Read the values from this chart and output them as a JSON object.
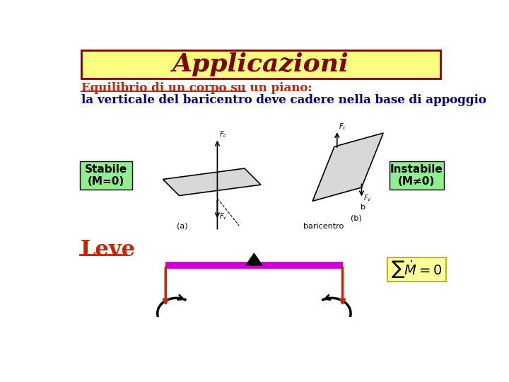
{
  "title": "Applicazioni",
  "title_bg": "#ffff80",
  "title_color": "#800000",
  "title_border": "#800000",
  "subtitle1": "Equilibrio di un corpo su un piano:",
  "subtitle2": "la verticale del baricentro deve cadere nella base di appoggio",
  "subtitle1_color": "#cc2200",
  "subtitle2_color": "#000080",
  "label_stabile": "Stabile\n(M=0)",
  "label_instabile": "Instabile\n(M≠0)",
  "label_box_color": "#90ee90",
  "leve_text": "Leve",
  "leve_color": "#cc2200",
  "moment_box_color": "#ffff99",
  "bar_color": "#cc00cc",
  "arrow_color": "#cc2200",
  "bg_color": "#ffffff"
}
